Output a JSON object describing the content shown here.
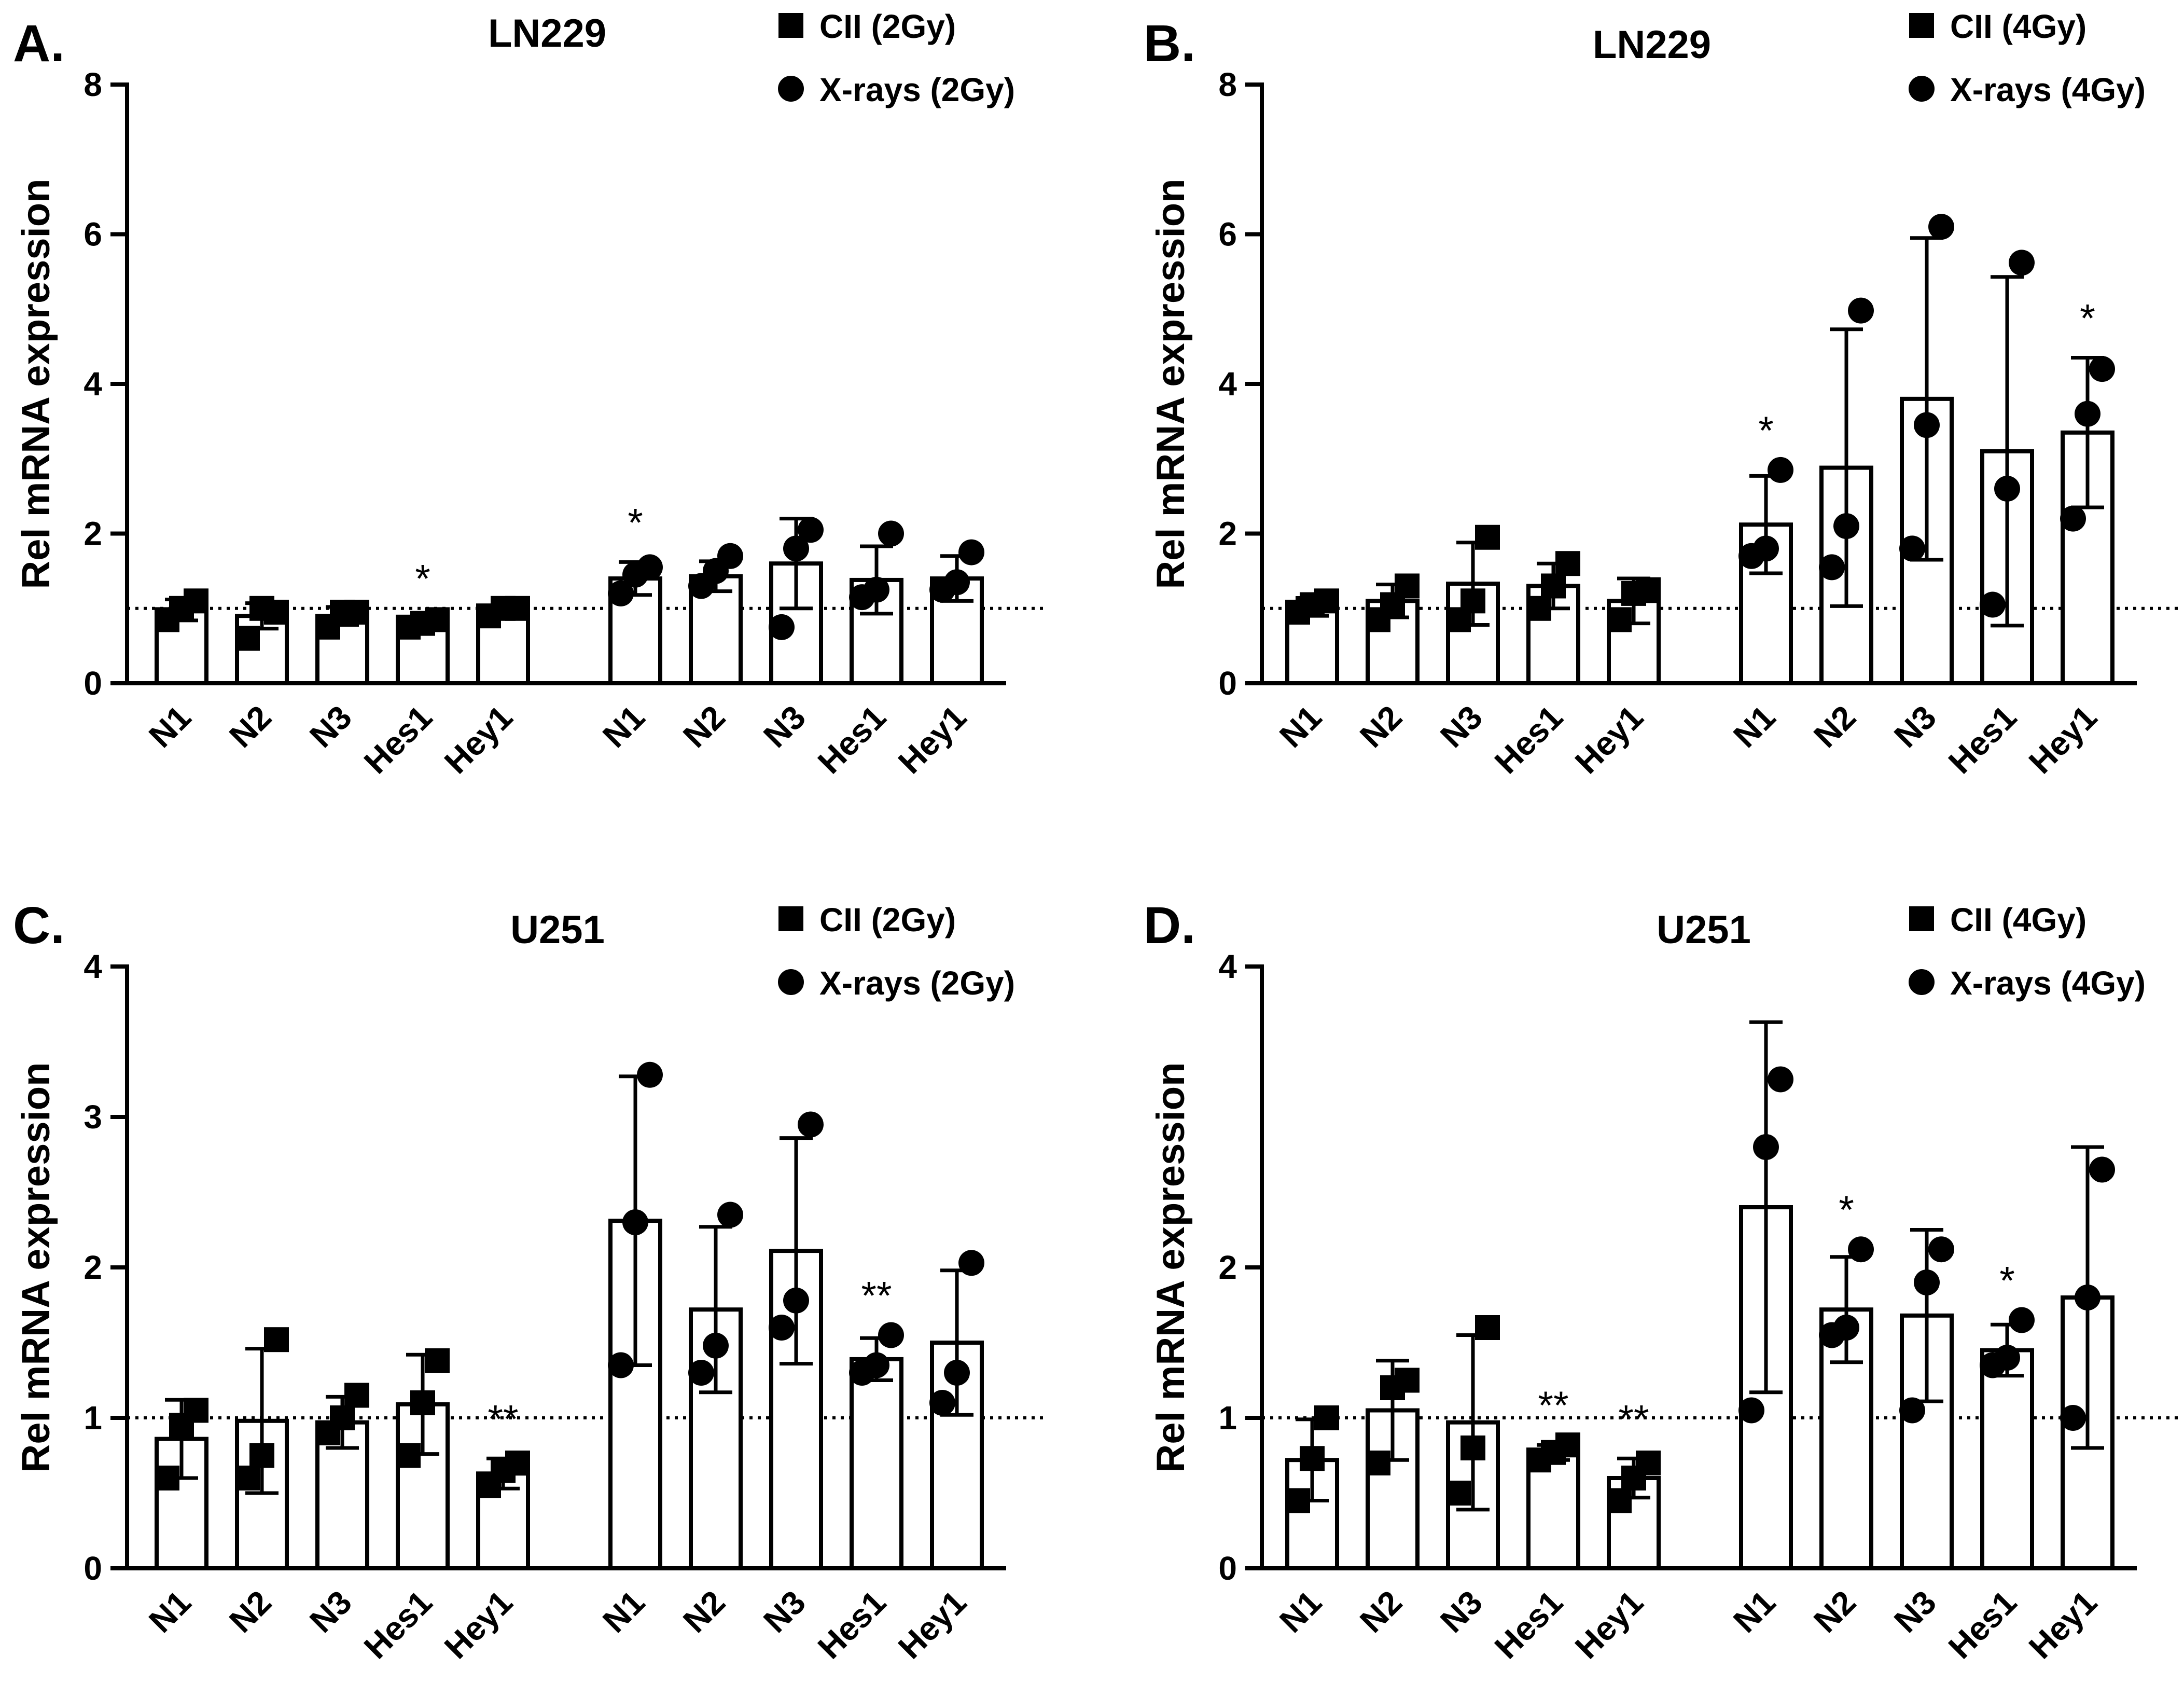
{
  "figure": {
    "colors": {
      "bar_fill": "#ffffff",
      "ink": "#000000"
    },
    "marker_icons": {
      "cii": "square-marker-icon",
      "xray": "circle-marker-icon"
    }
  },
  "chart_data": [
    {
      "panel": "A.",
      "type": "bar",
      "title": "LN229",
      "ylabel": "Rel mRNA expression",
      "ylim": [
        0,
        8
      ],
      "yticks": [
        0,
        2,
        4,
        6,
        8
      ],
      "reference_line": 1,
      "legend": [
        {
          "marker": "square",
          "label": "CII (2Gy)"
        },
        {
          "marker": "circle",
          "label": "X-rays (2Gy)"
        }
      ],
      "groups": [
        {
          "name": "CII (2Gy)",
          "marker": "square",
          "bars": [
            {
              "label": "N1",
              "mean": 0.98,
              "sd": 0.14,
              "points": [
                0.85,
                1.0,
                1.1
              ],
              "sig": ""
            },
            {
              "label": "N2",
              "mean": 0.9,
              "sd": 0.17,
              "points": [
                0.6,
                1.0,
                0.95
              ],
              "sig": ""
            },
            {
              "label": "N3",
              "mean": 0.9,
              "sd": 0.12,
              "points": [
                0.75,
                0.95,
                0.95
              ],
              "sig": ""
            },
            {
              "label": "Hes1",
              "mean": 0.8,
              "sd": 0.07,
              "points": [
                0.75,
                0.8,
                0.85
              ],
              "sig": "*"
            },
            {
              "label": "Hey1",
              "mean": 0.97,
              "sd": 0.06,
              "points": [
                0.9,
                1.0,
                1.0
              ],
              "sig": ""
            }
          ]
        },
        {
          "name": "X-rays (2Gy)",
          "marker": "circle",
          "bars": [
            {
              "label": "N1",
              "mean": 1.4,
              "sd": 0.22,
              "points": [
                1.2,
                1.45,
                1.55
              ],
              "sig": "*"
            },
            {
              "label": "N2",
              "mean": 1.43,
              "sd": 0.2,
              "points": [
                1.3,
                1.5,
                1.7
              ],
              "sig": ""
            },
            {
              "label": "N3",
              "mean": 1.6,
              "sd": 0.6,
              "points": [
                0.75,
                1.8,
                2.05
              ],
              "sig": ""
            },
            {
              "label": "Hes1",
              "mean": 1.38,
              "sd": 0.45,
              "points": [
                1.15,
                1.25,
                2.0
              ],
              "sig": ""
            },
            {
              "label": "Hey1",
              "mean": 1.4,
              "sd": 0.3,
              "points": [
                1.25,
                1.35,
                1.75
              ],
              "sig": ""
            }
          ]
        }
      ]
    },
    {
      "panel": "B.",
      "type": "bar",
      "title": "LN229",
      "ylabel": "Rel mRNA expression",
      "ylim": [
        0,
        8
      ],
      "yticks": [
        0,
        2,
        4,
        6,
        8
      ],
      "reference_line": 1,
      "legend": [
        {
          "marker": "square",
          "label": "CII (4Gy)"
        },
        {
          "marker": "circle",
          "label": "X-rays (4Gy)"
        }
      ],
      "groups": [
        {
          "name": "CII (4Gy)",
          "marker": "square",
          "bars": [
            {
              "label": "N1",
              "mean": 1.02,
              "sd": 0.12,
              "points": [
                0.95,
                1.05,
                1.1
              ],
              "sig": ""
            },
            {
              "label": "N2",
              "mean": 1.1,
              "sd": 0.22,
              "points": [
                0.85,
                1.05,
                1.3
              ],
              "sig": ""
            },
            {
              "label": "N3",
              "mean": 1.33,
              "sd": 0.55,
              "points": [
                0.85,
                1.1,
                1.95
              ],
              "sig": ""
            },
            {
              "label": "Hes1",
              "mean": 1.3,
              "sd": 0.3,
              "points": [
                1.0,
                1.3,
                1.6
              ],
              "sig": ""
            },
            {
              "label": "Hey1",
              "mean": 1.1,
              "sd": 0.3,
              "points": [
                0.85,
                1.2,
                1.25
              ],
              "sig": ""
            }
          ]
        },
        {
          "name": "X-rays (4Gy)",
          "marker": "circle",
          "bars": [
            {
              "label": "N1",
              "mean": 2.12,
              "sd": 0.65,
              "points": [
                1.7,
                1.8,
                2.85
              ],
              "sig": "*"
            },
            {
              "label": "N2",
              "mean": 2.88,
              "sd": 1.85,
              "points": [
                1.55,
                2.1,
                4.98
              ],
              "sig": ""
            },
            {
              "label": "N3",
              "mean": 3.8,
              "sd": 2.15,
              "points": [
                1.8,
                3.45,
                6.1
              ],
              "sig": ""
            },
            {
              "label": "Hes1",
              "mean": 3.1,
              "sd": 2.33,
              "points": [
                1.05,
                2.6,
                5.62
              ],
              "sig": ""
            },
            {
              "label": "Hey1",
              "mean": 3.35,
              "sd": 1.0,
              "points": [
                2.2,
                3.6,
                4.2
              ],
              "sig": "*"
            }
          ]
        }
      ]
    },
    {
      "panel": "C.",
      "type": "bar",
      "title": "U251",
      "ylabel": "Rel mRNA expression",
      "ylim": [
        0,
        4
      ],
      "yticks": [
        0,
        1,
        2,
        3,
        4
      ],
      "reference_line": 1,
      "legend": [
        {
          "marker": "square",
          "label": "CII (2Gy)"
        },
        {
          "marker": "circle",
          "label": "X-rays (2Gy)"
        }
      ],
      "groups": [
        {
          "name": "CII (2Gy)",
          "marker": "square",
          "bars": [
            {
              "label": "N1",
              "mean": 0.86,
              "sd": 0.26,
              "points": [
                0.6,
                0.95,
                1.05
              ],
              "sig": ""
            },
            {
              "label": "N2",
              "mean": 0.98,
              "sd": 0.48,
              "points": [
                0.6,
                0.75,
                1.52
              ],
              "sig": ""
            },
            {
              "label": "N3",
              "mean": 0.97,
              "sd": 0.17,
              "points": [
                0.9,
                1.0,
                1.15
              ],
              "sig": ""
            },
            {
              "label": "Hes1",
              "mean": 1.09,
              "sd": 0.33,
              "points": [
                0.75,
                1.1,
                1.38
              ],
              "sig": ""
            },
            {
              "label": "Hey1",
              "mean": 0.63,
              "sd": 0.1,
              "points": [
                0.55,
                0.65,
                0.7
              ],
              "sig": "**"
            }
          ]
        },
        {
          "name": "X-rays (2Gy)",
          "marker": "circle",
          "bars": [
            {
              "label": "N1",
              "mean": 2.31,
              "sd": 0.96,
              "points": [
                1.35,
                2.3,
                3.28
              ],
              "sig": ""
            },
            {
              "label": "N2",
              "mean": 1.72,
              "sd": 0.55,
              "points": [
                1.3,
                1.48,
                2.35
              ],
              "sig": ""
            },
            {
              "label": "N3",
              "mean": 2.11,
              "sd": 0.75,
              "points": [
                1.6,
                1.78,
                2.95
              ],
              "sig": ""
            },
            {
              "label": "Hes1",
              "mean": 1.39,
              "sd": 0.14,
              "points": [
                1.3,
                1.35,
                1.55
              ],
              "sig": "**"
            },
            {
              "label": "Hey1",
              "mean": 1.5,
              "sd": 0.48,
              "points": [
                1.1,
                1.3,
                2.03
              ],
              "sig": ""
            }
          ]
        }
      ]
    },
    {
      "panel": "D.",
      "type": "bar",
      "title": "U251",
      "ylabel": "Rel mRNA expression",
      "ylim": [
        0,
        4
      ],
      "yticks": [
        0,
        1,
        2,
        4
      ],
      "reference_line": 1,
      "legend": [
        {
          "marker": "square",
          "label": "CII (4Gy)"
        },
        {
          "marker": "circle",
          "label": "X-rays (4Gy)"
        }
      ],
      "groups": [
        {
          "name": "CII (4Gy)",
          "marker": "square",
          "bars": [
            {
              "label": "N1",
              "mean": 0.72,
              "sd": 0.27,
              "points": [
                0.45,
                0.73,
                1.0
              ],
              "sig": ""
            },
            {
              "label": "N2",
              "mean": 1.05,
              "sd": 0.33,
              "points": [
                0.7,
                1.2,
                1.25
              ],
              "sig": ""
            },
            {
              "label": "N3",
              "mean": 0.97,
              "sd": 0.58,
              "points": [
                0.5,
                0.8,
                1.6
              ],
              "sig": ""
            },
            {
              "label": "Hes1",
              "mean": 0.77,
              "sd": 0.05,
              "points": [
                0.72,
                0.77,
                0.82
              ],
              "sig": "**"
            },
            {
              "label": "Hey1",
              "mean": 0.6,
              "sd": 0.13,
              "points": [
                0.45,
                0.6,
                0.7
              ],
              "sig": "**"
            }
          ]
        },
        {
          "name": "X-rays (4Gy)",
          "marker": "circle",
          "bars": [
            {
              "label": "N1",
              "mean": 2.4,
              "sd": 1.23,
              "points": [
                1.05,
                2.8,
                3.25
              ],
              "sig": ""
            },
            {
              "label": "N2",
              "mean": 1.72,
              "sd": 0.35,
              "points": [
                1.55,
                1.6,
                2.12
              ],
              "sig": "*"
            },
            {
              "label": "N3",
              "mean": 1.68,
              "sd": 0.57,
              "points": [
                1.05,
                1.9,
                2.12
              ],
              "sig": ""
            },
            {
              "label": "Hes1",
              "mean": 1.45,
              "sd": 0.17,
              "points": [
                1.35,
                1.4,
                1.65
              ],
              "sig": "*"
            },
            {
              "label": "Hey1",
              "mean": 1.8,
              "sd": 1.0,
              "points": [
                1.0,
                1.8,
                2.65
              ],
              "sig": ""
            }
          ]
        }
      ]
    }
  ]
}
